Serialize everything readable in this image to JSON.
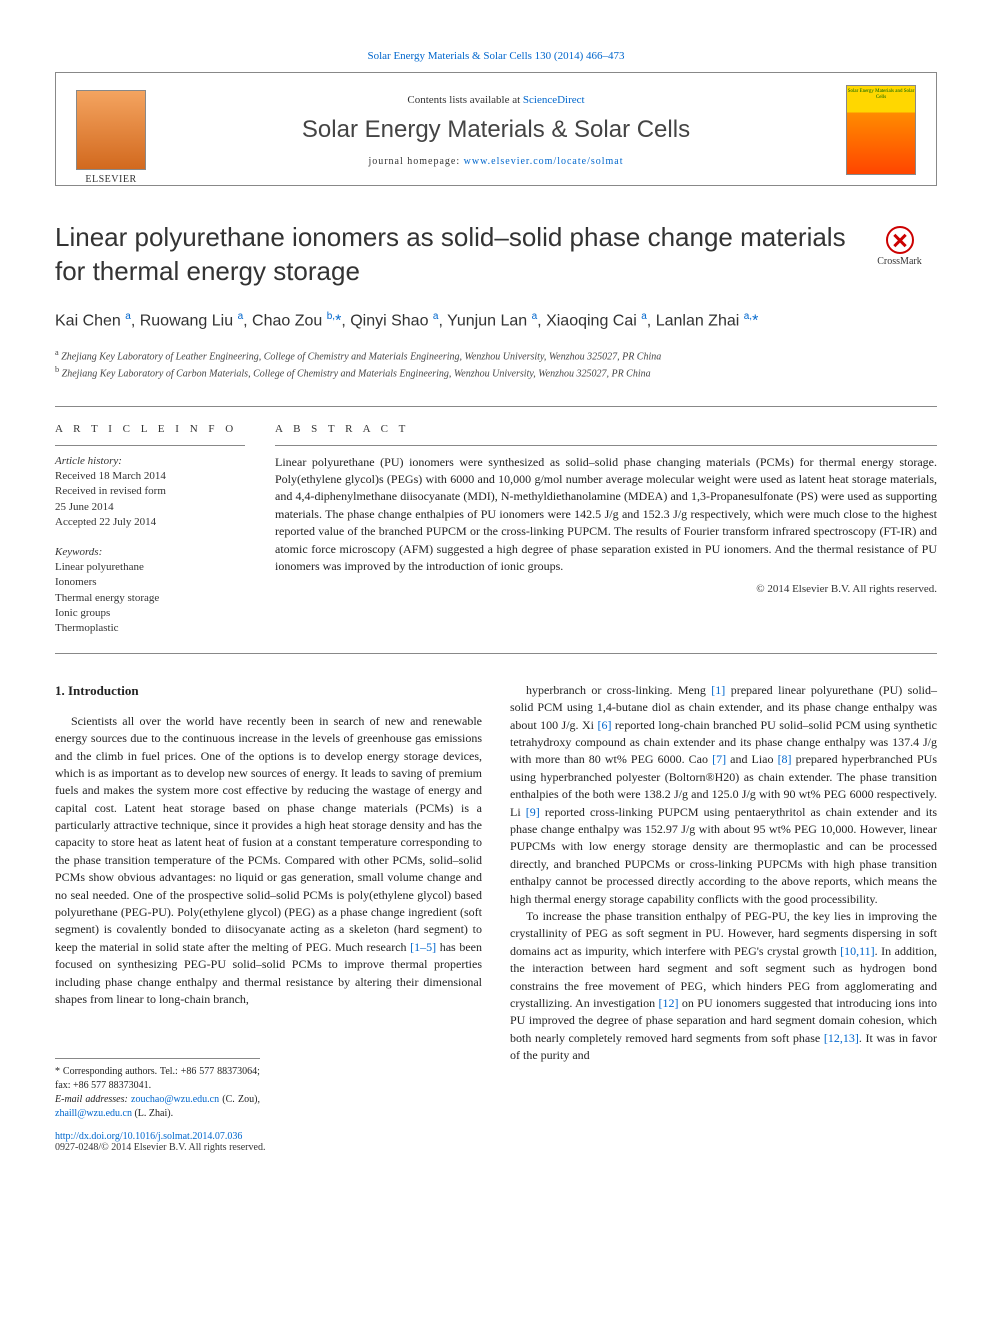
{
  "journal_ref": "Solar Energy Materials & Solar Cells 130 (2014) 466–473",
  "header": {
    "contents_prefix": "Contents lists available at ",
    "contents_link": "ScienceDirect",
    "journal_name": "Solar Energy Materials & Solar Cells",
    "homepage_prefix": "journal homepage: ",
    "homepage_link": "www.elsevier.com/locate/solmat",
    "cover_text": "Solar Energy Materials and Solar Cells"
  },
  "crossmark": "CrossMark",
  "title": "Linear polyurethane ionomers as solid–solid phase change materials for thermal energy storage",
  "authors_html": "Kai Chen <sup>a</sup>, Ruowang Liu <sup>a</sup>, Chao Zou <sup>b,</sup><span class='corr'>*</span>, Qinyi Shao <sup>a</sup>, Yunjun Lan <sup>a</sup>, Xiaoqing Cai <sup>a</sup>, Lanlan Zhai <sup>a,</sup><span class='corr'>*</span>",
  "affiliations": {
    "a": "Zhejiang Key Laboratory of Leather Engineering, College of Chemistry and Materials Engineering, Wenzhou University, Wenzhou 325027, PR China",
    "b": "Zhejiang Key Laboratory of Carbon Materials, College of Chemistry and Materials Engineering, Wenzhou University, Wenzhou 325027, PR China"
  },
  "article_info": {
    "heading": "A R T I C L E  I N F O",
    "history_label": "Article history:",
    "history": [
      "Received 18 March 2014",
      "Received in revised form",
      "25 June 2014",
      "Accepted 22 July 2014"
    ],
    "keywords_label": "Keywords:",
    "keywords": [
      "Linear polyurethane",
      "Ionomers",
      "Thermal energy storage",
      "Ionic groups",
      "Thermoplastic"
    ]
  },
  "abstract": {
    "heading": "A B S T R A C T",
    "text": "Linear polyurethane (PU) ionomers were synthesized as solid–solid phase changing materials (PCMs) for thermal energy storage. Poly(ethylene glycol)s (PEGs) with 6000 and 10,000 g/mol number average molecular weight were used as latent heat storage materials, and 4,4-diphenylmethane diisocyanate (MDI), N-methyldiethanolamine (MDEA) and 1,3-Propanesulfonate (PS) were used as supporting materials. The phase change enthalpies of PU ionomers were 142.5 J/g and 152.3 J/g respectively, which were much close to the highest reported value of the branched PUPCM or the cross-linking PUPCM. The results of Fourier transform infrared spectroscopy (FT-IR) and atomic force microscopy (AFM) suggested a high degree of phase separation existed in PU ionomers. And the thermal resistance of PU ionomers was improved by the introduction of ionic groups.",
    "copyright": "© 2014 Elsevier B.V. All rights reserved."
  },
  "body": {
    "heading1": "1. Introduction",
    "col1_p1": "Scientists all over the world have recently been in search of new and renewable energy sources due to the continuous increase in the levels of greenhouse gas emissions and the climb in fuel prices. One of the options is to develop energy storage devices, which is as important as to develop new sources of energy. It leads to saving of premium fuels and makes the system more cost effective by reducing the wastage of energy and capital cost. Latent heat storage based on phase change materials (PCMs) is a particularly attractive technique, since it provides a high heat storage density and has the capacity to store heat as latent heat of fusion at a constant temperature corresponding to the phase transition temperature of the PCMs. Compared with other PCMs, solid–solid PCMs show obvious advantages: no liquid or gas generation, small volume change and no seal needed. One of the prospective solid–solid PCMs is poly(ethylene glycol) based polyurethane (PEG-PU). Poly(ethylene glycol) (PEG) as a phase change ingredient (soft segment) is covalently bonded to diisocyanate acting as a skeleton (hard segment) to keep the material in solid state after the melting of PEG. Much research ",
    "ref_1_5": "[1–5]",
    "col1_p1_end": " has been focused on synthesizing PEG-PU solid–solid PCMs to improve thermal properties including phase change enthalpy and thermal resistance by altering their dimensional shapes from linear to long-chain branch,",
    "col2_p1a": "hyperbranch or cross-linking. Meng ",
    "ref_1": "[1]",
    "col2_p1b": " prepared linear polyurethane (PU) solid–solid PCM using 1,4-butane diol as chain extender, and its phase change enthalpy was about 100 J/g. Xi ",
    "ref_6": "[6]",
    "col2_p1c": " reported long-chain branched PU solid–solid PCM using synthetic tetrahydroxy compound as chain extender and its phase change enthalpy was 137.4 J/g with more than 80 wt% PEG 6000. Cao ",
    "ref_7": "[7]",
    "col2_p1d": " and Liao ",
    "ref_8": "[8]",
    "col2_p1e": " prepared hyperbranched PUs using hyperbranched polyester (Boltorn®H20) as chain extender. The phase transition enthalpies of the both were 138.2 J/g and 125.0 J/g with 90 wt% PEG 6000 respectively. Li ",
    "ref_9": "[9]",
    "col2_p1f": " reported cross-linking PUPCM using pentaerythritol as chain extender and its phase change enthalpy was 152.97 J/g with about 95 wt% PEG 10,000. However, linear PUPCMs with low energy storage density are thermoplastic and can be processed directly, and branched PUPCMs or cross-linking PUPCMs with high phase transition enthalpy cannot be processed directly according to the above reports, which means the high thermal energy storage capability conflicts with the good processibility.",
    "col2_p2a": "To increase the phase transition enthalpy of PEG-PU, the key lies in improving the crystallinity of PEG as soft segment in PU. However, hard segments dispersing in soft domains act as impurity, which interfere with PEG's crystal growth ",
    "ref_10_11": "[10,11]",
    "col2_p2b": ". In addition, the interaction between hard segment and soft segment such as hydrogen bond constrains the free movement of PEG, which hinders PEG from agglomerating and crystallizing. An investigation ",
    "ref_12": "[12]",
    "col2_p2c": " on PU ionomers suggested that introducing ions into PU improved the degree of phase separation and hard segment domain cohesion, which both nearly completely removed hard segments from soft phase ",
    "ref_12_13": "[12,13]",
    "col2_p2d": ". It was in favor of the purity and"
  },
  "footer": {
    "corr_line": "* Corresponding authors. Tel.: +86 577 88373064; fax: +86 577 88373041.",
    "email_label": "E-mail addresses: ",
    "email1": "zouchao@wzu.edu.cn",
    "email1_name": " (C. Zou), ",
    "email2": "zhaill@wzu.edu.cn",
    "email2_name": " (L. Zhai).",
    "doi": "http://dx.doi.org/10.1016/j.solmat.2014.07.036",
    "issn": "0927-0248/© 2014 Elsevier B.V. All rights reserved."
  },
  "colors": {
    "link": "#0066cc",
    "text": "#222222",
    "heading": "#333333",
    "border": "#888888"
  }
}
